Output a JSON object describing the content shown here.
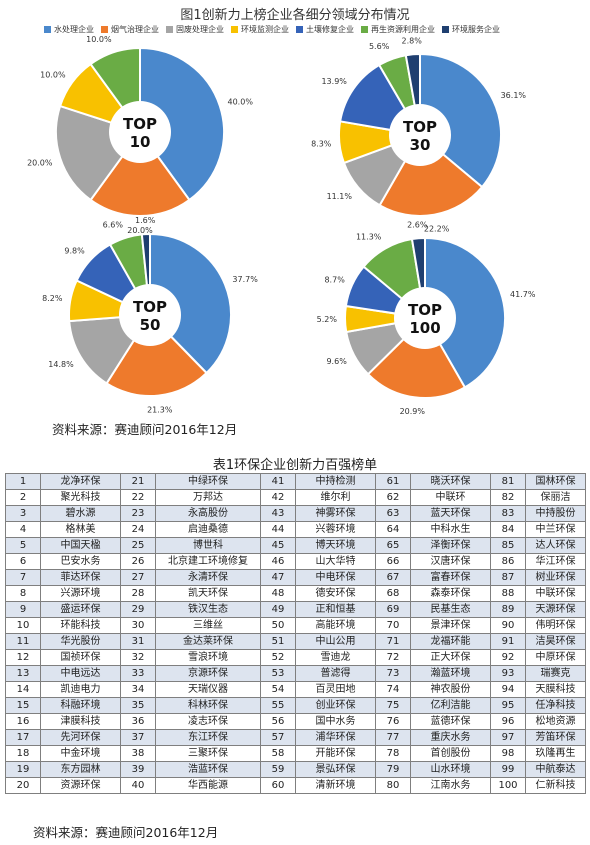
{
  "figure": {
    "title": "图1创新力上榜企业各细分领域分布情况",
    "categories": [
      {
        "name": "水处理企业",
        "color": "#4a88cc"
      },
      {
        "name": "烟气治理企业",
        "color": "#ee7a2c"
      },
      {
        "name": "固废处理企业",
        "color": "#a5a5a5"
      },
      {
        "name": "环境监测企业",
        "color": "#f8c100"
      },
      {
        "name": "土壤修复企业",
        "color": "#3563b8"
      },
      {
        "name": "再生资源利用企业",
        "color": "#6aac45"
      },
      {
        "name": "环境服务企业",
        "color": "#1f3f70"
      }
    ],
    "source": "资料来源：赛迪顾问2016年12月"
  },
  "chart_data": [
    {
      "type": "pie",
      "title": "TOP 10",
      "categories": [
        "水处理企业",
        "烟气治理企业",
        "固废处理企业",
        "环境监测企业",
        "土壤修复企业",
        "再生资源利用企业",
        "环境服务企业"
      ],
      "values": [
        40.0,
        20.0,
        20.0,
        10.0,
        0,
        10.0,
        0
      ],
      "labels": [
        "40.0%",
        "20.0%",
        "20.0%",
        "10.0%",
        "",
        "10.0%",
        ""
      ]
    },
    {
      "type": "pie",
      "title": "TOP 30",
      "categories": [
        "水处理企业",
        "烟气治理企业",
        "固废处理企业",
        "环境监测企业",
        "土壤修复企业",
        "再生资源利用企业",
        "环境服务企业"
      ],
      "values": [
        36.1,
        22.2,
        11.1,
        8.3,
        13.9,
        5.6,
        2.8
      ],
      "labels": [
        "36.1%",
        "22.2%",
        "11.1%",
        "8.3%",
        "13.9%",
        "5.6%",
        "2.8%"
      ]
    },
    {
      "type": "pie",
      "title": "TOP 50",
      "categories": [
        "水处理企业",
        "烟气治理企业",
        "固废处理企业",
        "环境监测企业",
        "土壤修复企业",
        "再生资源利用企业",
        "环境服务企业"
      ],
      "values": [
        37.7,
        21.3,
        14.8,
        8.2,
        9.8,
        6.6,
        1.6
      ],
      "labels": [
        "37.7%",
        "21.3%",
        "14.8%",
        "8.2%",
        "9.8%",
        "6.6%",
        "1.6%"
      ]
    },
    {
      "type": "pie",
      "title": "TOP 100",
      "categories": [
        "水处理企业",
        "烟气治理企业",
        "固废处理企业",
        "环境监测企业",
        "土壤修复企业",
        "再生资源利用企业",
        "环境服务企业"
      ],
      "values": [
        41.7,
        20.9,
        9.6,
        5.2,
        8.7,
        11.3,
        2.6
      ],
      "labels": [
        "41.7%",
        "20.9%",
        "9.6%",
        "5.2%",
        "8.7%",
        "11.3%",
        "2.6%"
      ]
    }
  ],
  "table": {
    "title": "表1环保企业创新力百强榜单",
    "source": "资料来源：赛迪顾问2016年12月",
    "rows": [
      [
        "1",
        "龙净环保",
        "21",
        "中绿环保",
        "41",
        "中持检测",
        "61",
        "晓沃环保",
        "81",
        "国林环保"
      ],
      [
        "2",
        "聚光科技",
        "22",
        "万邦达",
        "42",
        "维尔利",
        "62",
        "中联环",
        "82",
        "保丽洁"
      ],
      [
        "3",
        "碧水源",
        "23",
        "永高股份",
        "43",
        "神雾环保",
        "63",
        "蓝天环保",
        "83",
        "中持股份"
      ],
      [
        "4",
        "格林美",
        "24",
        "启迪桑德",
        "44",
        "兴蓉环境",
        "64",
        "中科水生",
        "84",
        "中兰环保"
      ],
      [
        "5",
        "中国天楹",
        "25",
        "博世科",
        "45",
        "博天环境",
        "65",
        "泽衡环保",
        "85",
        "达人环保"
      ],
      [
        "6",
        "巴安水务",
        "26",
        "北京建工环境修复",
        "46",
        "山大华特",
        "66",
        "汉唐环保",
        "86",
        "华江环保"
      ],
      [
        "7",
        "菲达环保",
        "27",
        "永清环保",
        "47",
        "中电环保",
        "67",
        "富春环保",
        "87",
        "树业环保"
      ],
      [
        "8",
        "兴源环境",
        "28",
        "凯天环保",
        "48",
        "德安环保",
        "68",
        "森泰环保",
        "88",
        "中联环保"
      ],
      [
        "9",
        "盛运环保",
        "29",
        "铁汉生态",
        "49",
        "正和恒基",
        "69",
        "民基生态",
        "89",
        "天源环保"
      ],
      [
        "10",
        "环能科技",
        "30",
        "三维丝",
        "50",
        "高能环境",
        "70",
        "景津环保",
        "90",
        "伟明环保"
      ],
      [
        "11",
        "华光股份",
        "31",
        "金达莱环保",
        "51",
        "中山公用",
        "71",
        "龙福环能",
        "91",
        "洁昊环保"
      ],
      [
        "12",
        "国祯环保",
        "32",
        "雪浪环境",
        "52",
        "雪迪龙",
        "72",
        "正大环保",
        "92",
        "中原环保"
      ],
      [
        "13",
        "中电远达",
        "33",
        "京源环保",
        "53",
        "普滤得",
        "73",
        "瀚蓝环境",
        "93",
        "瑞赛克"
      ],
      [
        "14",
        "凯迪电力",
        "34",
        "天瑞仪器",
        "54",
        "百灵田地",
        "74",
        "神农股份",
        "94",
        "天膜科技"
      ],
      [
        "15",
        "科融环境",
        "35",
        "科林环保",
        "55",
        "创业环保",
        "75",
        "亿利洁能",
        "95",
        "任净科技"
      ],
      [
        "16",
        "津膜科技",
        "36",
        "凌志环保",
        "56",
        "国中水务",
        "76",
        "蓝德环保",
        "96",
        "松地资源"
      ],
      [
        "17",
        "先河环保",
        "37",
        "东江环保",
        "57",
        "浦华环保",
        "77",
        "重庆水务",
        "97",
        "芳笛环保"
      ],
      [
        "18",
        "中金环境",
        "38",
        "三聚环保",
        "58",
        "开能环保",
        "78",
        "首创股份",
        "98",
        "玖隆再生"
      ],
      [
        "19",
        "东方园林",
        "39",
        "浩蓝环保",
        "59",
        "景弘环保",
        "79",
        "山水环境",
        "99",
        "中航泰达"
      ],
      [
        "20",
        "资源环保",
        "40",
        "华西能源",
        "60",
        "清新环境",
        "80",
        "江南水务",
        "100",
        "仁新科技"
      ]
    ]
  }
}
